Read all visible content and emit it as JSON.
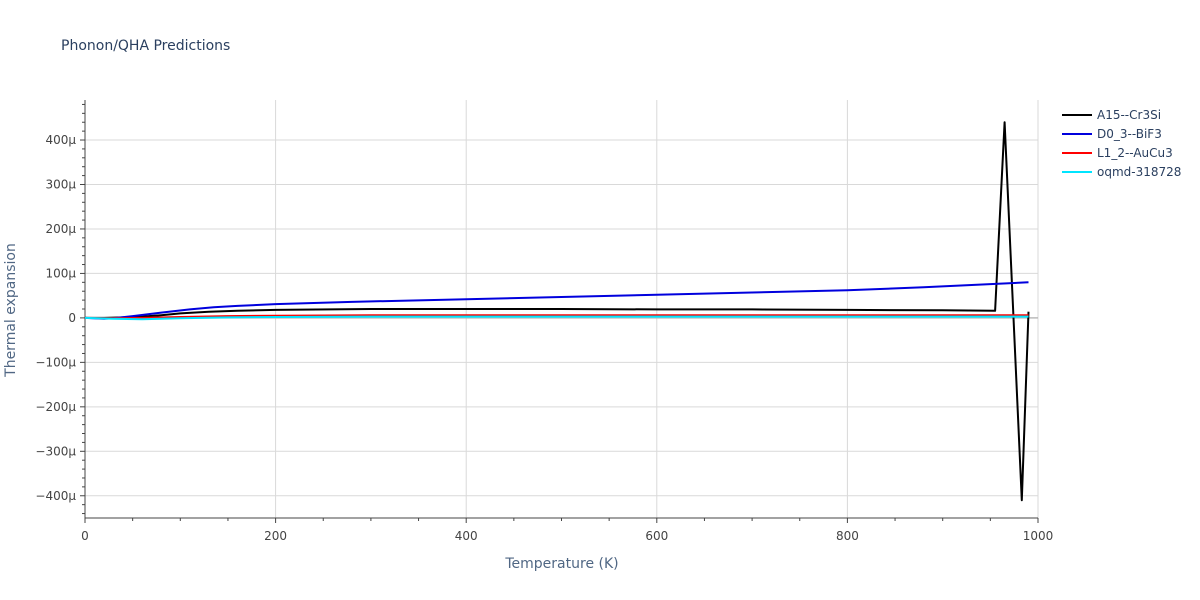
{
  "chart_data": {
    "type": "line",
    "title": "Phonon/QHA Predictions",
    "xlabel": "Temperature (K)",
    "ylabel": "Thermal expansion",
    "xlim": [
      0,
      1000
    ],
    "ylim": [
      -450,
      490
    ],
    "y_unit_suffix": "μ",
    "grid": true,
    "legend_position": "top-right",
    "x_ticks": [
      0,
      200,
      400,
      600,
      800,
      1000
    ],
    "y_ticks": [
      -400,
      -300,
      -200,
      -100,
      0,
      100,
      200,
      300,
      400
    ],
    "x_tick_labels": [
      "0",
      "200",
      "400",
      "600",
      "800",
      "1000"
    ],
    "y_tick_labels": [
      "−400μ",
      "−300μ",
      "−200μ",
      "−100μ",
      "0",
      "100μ",
      "200μ",
      "300μ",
      "400μ"
    ],
    "series": [
      {
        "name": "A15--Cr3Si",
        "color": "#000000",
        "x": [
          0,
          20,
          40,
          60,
          80,
          100,
          130,
          160,
          200,
          300,
          400,
          500,
          600,
          700,
          800,
          900,
          955,
          965,
          983,
          990
        ],
        "y": [
          0,
          0,
          1,
          3,
          6,
          10,
          14,
          16,
          18,
          20,
          20,
          20,
          19,
          19,
          18,
          17,
          16,
          440,
          -410,
          14
        ]
      },
      {
        "name": "D0_3--BiF3",
        "color": "#0000dd",
        "x": [
          0,
          20,
          30,
          50,
          80,
          110,
          135,
          160,
          200,
          280,
          400,
          500,
          600,
          700,
          800,
          880,
          950,
          990
        ],
        "y": [
          0,
          -2,
          -1,
          4,
          12,
          19,
          24,
          27,
          31,
          36,
          42,
          47,
          52,
          57,
          62,
          69,
          76,
          80
        ]
      },
      {
        "name": "L1_2--AuCu3",
        "color": "#ff0000",
        "x": [
          0,
          30,
          60,
          100,
          150,
          200,
          300,
          400,
          500,
          600,
          700,
          800,
          900,
          990
        ],
        "y": [
          0,
          -1,
          0,
          2,
          4,
          5,
          6,
          6,
          6,
          6,
          6,
          6,
          6,
          6
        ]
      },
      {
        "name": "oqmd-318728",
        "color": "#00e5ff",
        "x": [
          0,
          30,
          60,
          100,
          150,
          200,
          300,
          400,
          500,
          600,
          700,
          800,
          900,
          990
        ],
        "y": [
          0,
          -2,
          -3,
          -1,
          1,
          2,
          3,
          3,
          3,
          3,
          3,
          3,
          3,
          3
        ]
      }
    ]
  }
}
